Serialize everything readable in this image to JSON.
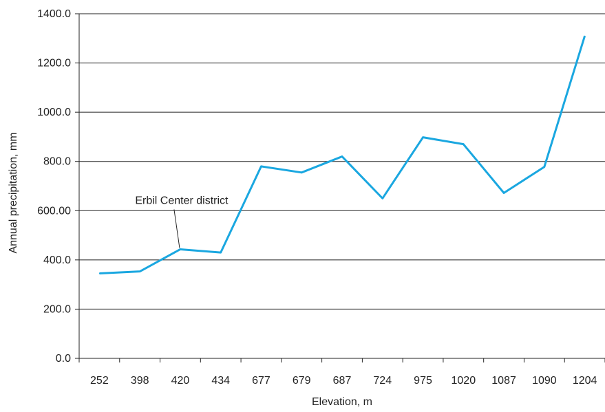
{
  "chart_data": {
    "type": "line",
    "categories": [
      "252",
      "398",
      "420",
      "434",
      "677",
      "679",
      "687",
      "724",
      "975",
      "1020",
      "1087",
      "1090",
      "1204"
    ],
    "series": [
      {
        "values": [
          345,
          353,
          443,
          430,
          780,
          755,
          820,
          650,
          898,
          870,
          672,
          778,
          1310
        ]
      }
    ],
    "xlabel": "Elevation, m",
    "ylabel": "Annual precipitation, mm",
    "ylim": [
      0,
      1400
    ],
    "yticks": [
      {
        "value": 0,
        "label": "0.0"
      },
      {
        "value": 200,
        "label": "200.0"
      },
      {
        "value": 400,
        "label": "400.0"
      },
      {
        "value": 600,
        "label": "600.00"
      },
      {
        "value": 800,
        "label": "800.0"
      },
      {
        "value": 1000,
        "label": "1000.0"
      },
      {
        "value": 1200,
        "label": "1200.0"
      },
      {
        "value": 1400,
        "label": "1400.0"
      }
    ],
    "grid": "horizontal",
    "line_color": "#1aa7e0",
    "annotations": [
      {
        "text": "Erbil Center district",
        "category": "420"
      }
    ]
  }
}
